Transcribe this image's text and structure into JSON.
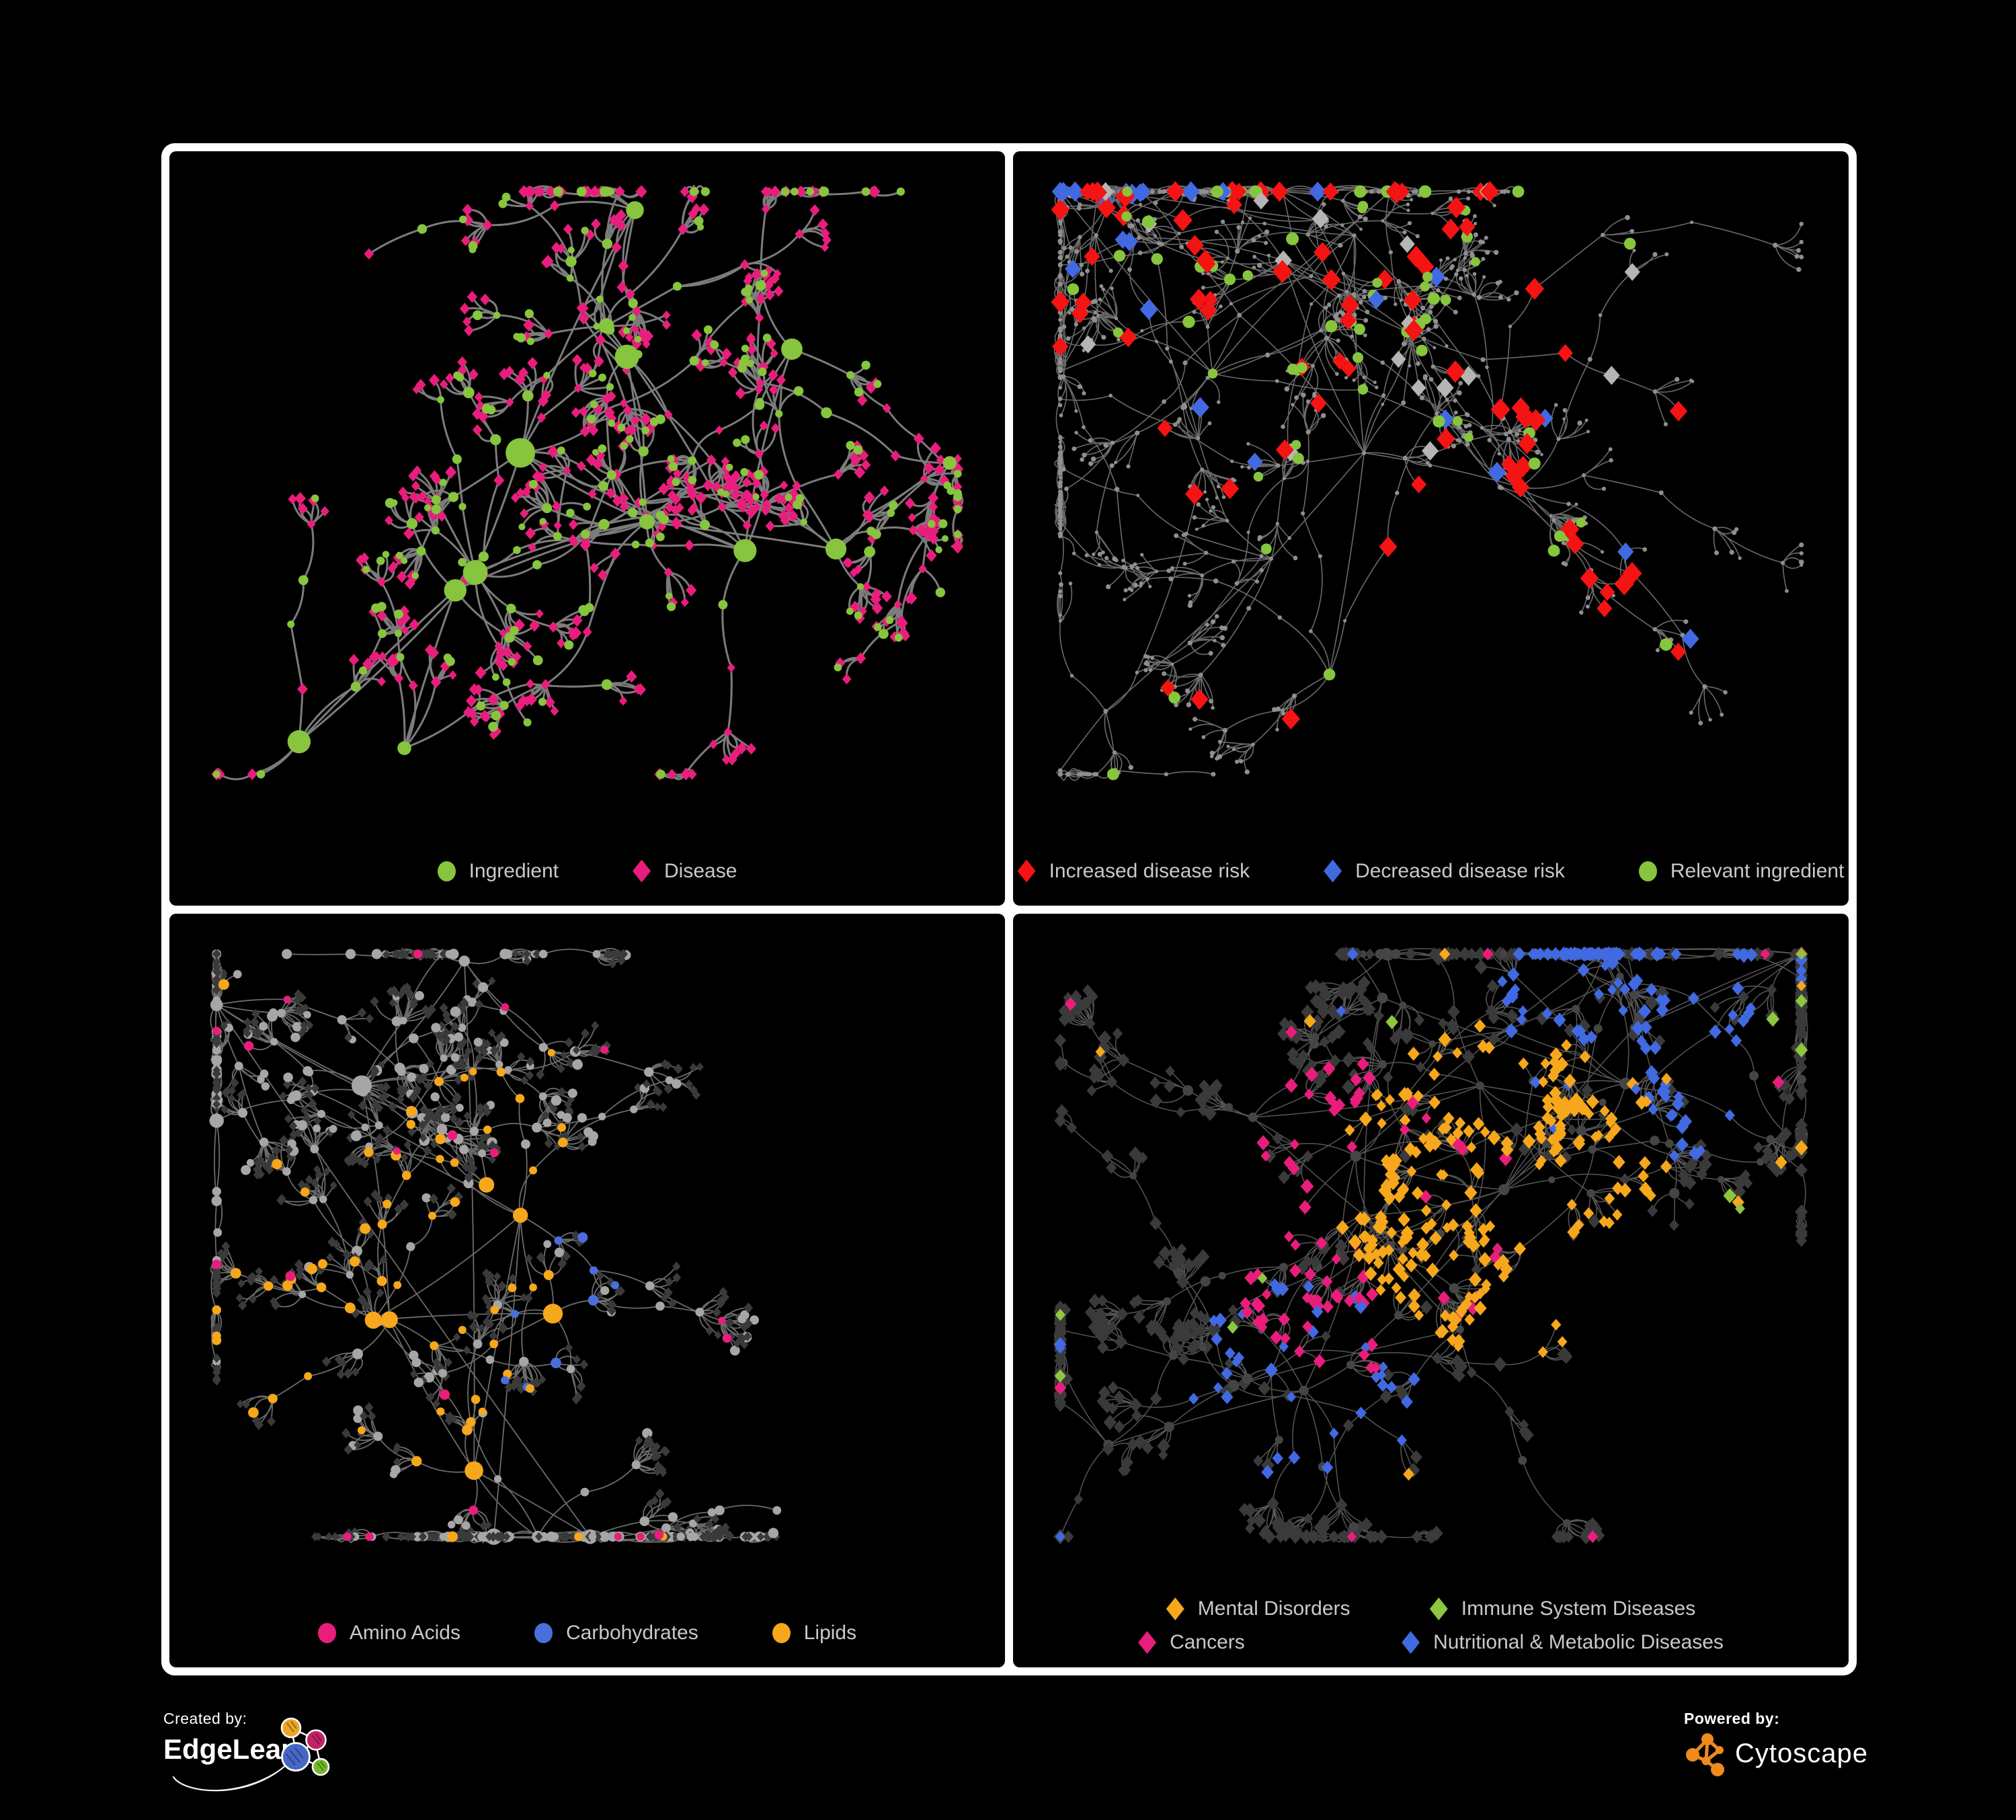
{
  "page": {
    "background": "#000000",
    "panel_border_color": "#ffffff",
    "legend_text_color": "#c9c9c9"
  },
  "palette": {
    "green": "#86c53d",
    "pink": "#e91d7c",
    "red": "#f61313",
    "blue": "#4169e1",
    "amber": "#f6a71b",
    "carb_blue": "#4a6fdb",
    "silver": "#b5b5b5",
    "light_gray": "#a6a6a6",
    "tiny_gray": "#8f8f8f",
    "dark_diamond": "#3a3a3a",
    "dark_circle": "#454545",
    "immune_green": "#8dc63f"
  },
  "panels": [
    {
      "id": "ingredient-disease",
      "position": "top-left",
      "encoding": "green circles are ingredients, pink diamonds are diseases",
      "legend_rows": [
        [
          {
            "label": "Ingredient",
            "shape": "circle",
            "color": "#86c53d"
          },
          {
            "label": "Disease",
            "shape": "diamond",
            "color": "#e91d7c"
          }
        ]
      ]
    },
    {
      "id": "disease-risk",
      "position": "top-right",
      "encoding": "red diamonds increased risk, blue diamonds decreased risk, green circles relevant ingredients, small gray dots other nodes",
      "legend_rows": [
        [
          {
            "label": "Increased disease risk",
            "shape": "diamond",
            "color": "#f61313"
          },
          {
            "label": "Decreased disease risk",
            "shape": "diamond",
            "color": "#4169e1"
          },
          {
            "label": "Relevant ingredient",
            "shape": "circle",
            "color": "#86c53d"
          }
        ]
      ]
    },
    {
      "id": "nutrient-classes",
      "position": "bottom-left",
      "encoding": "circles are ingredients colored by nutrient class, dark diamonds are diseases",
      "legend_rows": [
        [
          {
            "label": "Amino Acids",
            "shape": "circle",
            "color": "#e91d7c"
          },
          {
            "label": "Carbohydrates",
            "shape": "circle",
            "color": "#4a6fdb"
          },
          {
            "label": "Lipids",
            "shape": "circle",
            "color": "#f6a71b"
          }
        ]
      ]
    },
    {
      "id": "disease-classes",
      "position": "bottom-right",
      "encoding": "diamonds are diseases colored by disease class, dark circles are ingredients",
      "legend_rows": [
        [
          {
            "label": "Mental Disorders",
            "shape": "diamond",
            "color": "#f6a71b"
          },
          {
            "label": "Immune System Diseases",
            "shape": "diamond",
            "color": "#8dc63f"
          }
        ],
        [
          {
            "label": "Cancers",
            "shape": "diamond",
            "color": "#e91d7c"
          },
          {
            "label": "Nutritional & Metabolic Diseases",
            "shape": "diamond",
            "color": "#4169e1"
          }
        ]
      ]
    }
  ],
  "footer": {
    "created_by_label": "Created by:",
    "created_by_name": "EdgeLeap",
    "powered_by_label": "Powered by:",
    "powered_by_name": "Cytoscape",
    "cytoscape_orange": "#ef8a1c",
    "edgeleap_logo_colors": {
      "orange": "#eda427",
      "magenta": "#c22368",
      "blue": "#4667c6",
      "green": "#76b82a"
    }
  }
}
